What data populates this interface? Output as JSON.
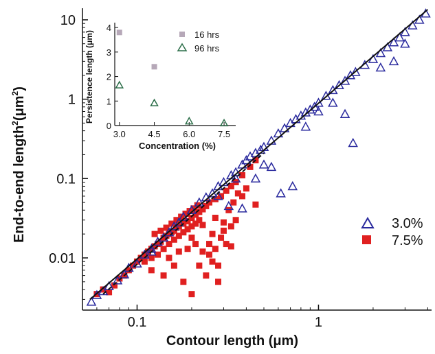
{
  "chart_data": [
    {
      "type": "scatter",
      "xlabel": "Contour length (μm)",
      "ylabel_main": "End-to-end length",
      "ylabel_sup": "2",
      "ylabel_unit": "(μm",
      "ylabel_unit_sup": "2",
      "ylabel_close": ")",
      "xscale": "log",
      "yscale": "log",
      "xlim": [
        0.05,
        4.2
      ],
      "ylim": [
        0.0022,
        14
      ],
      "xticks": [
        {
          "v": 0.1,
          "label": "0.1"
        },
        {
          "v": 1,
          "label": "1"
        }
      ],
      "yticks": [
        {
          "v": 0.01,
          "label": "0.01"
        },
        {
          "v": 0.1,
          "label": "0.1"
        },
        {
          "v": 1,
          "label": "1"
        },
        {
          "v": 10,
          "label": "10"
        }
      ],
      "legend_position": "right",
      "reference_lines": [
        {
          "style": "solid",
          "x": [
            0.055,
            4.0
          ],
          "y": [
            0.003,
            13.5
          ]
        },
        {
          "style": "dashed",
          "x": [
            0.065,
            0.5
          ],
          "y": [
            0.0035,
            0.21
          ]
        }
      ],
      "series": [
        {
          "name": "3.0%",
          "marker": "triangle-open",
          "color": "#2a2a9e",
          "points": [
            [
              0.056,
              0.0028
            ],
            [
              0.06,
              0.0034
            ],
            [
              0.065,
              0.0038
            ],
            [
              0.07,
              0.0044
            ],
            [
              0.078,
              0.0052
            ],
            [
              0.085,
              0.0062
            ],
            [
              0.09,
              0.0075
            ],
            [
              0.1,
              0.0085
            ],
            [
              0.11,
              0.011
            ],
            [
              0.12,
              0.013
            ],
            [
              0.13,
              0.016
            ],
            [
              0.14,
              0.018
            ],
            [
              0.15,
              0.021
            ],
            [
              0.16,
              0.025
            ],
            [
              0.17,
              0.028
            ],
            [
              0.18,
              0.033
            ],
            [
              0.2,
              0.04
            ],
            [
              0.22,
              0.05
            ],
            [
              0.24,
              0.058
            ],
            [
              0.26,
              0.065
            ],
            [
              0.28,
              0.08
            ],
            [
              0.3,
              0.09
            ],
            [
              0.33,
              0.11
            ],
            [
              0.35,
              0.12
            ],
            [
              0.38,
              0.15
            ],
            [
              0.4,
              0.17
            ],
            [
              0.42,
              0.19
            ],
            [
              0.45,
              0.21
            ],
            [
              0.48,
              0.23
            ],
            [
              0.5,
              0.25
            ],
            [
              0.55,
              0.3
            ],
            [
              0.6,
              0.37
            ],
            [
              0.65,
              0.43
            ],
            [
              0.7,
              0.5
            ],
            [
              0.75,
              0.56
            ],
            [
              0.8,
              0.62
            ],
            [
              0.85,
              0.68
            ],
            [
              0.9,
              0.74
            ],
            [
              0.95,
              0.8
            ],
            [
              1.0,
              0.9
            ],
            [
              1.1,
              1.1
            ],
            [
              1.2,
              1.3
            ],
            [
              1.3,
              1.5
            ],
            [
              1.4,
              1.7
            ],
            [
              1.5,
              2.0
            ],
            [
              1.6,
              2.2
            ],
            [
              1.8,
              2.7
            ],
            [
              2.0,
              3.2
            ],
            [
              2.2,
              3.8
            ],
            [
              2.4,
              4.5
            ],
            [
              2.6,
              5.2
            ],
            [
              2.8,
              6.0
            ],
            [
              3.0,
              7.0
            ],
            [
              3.3,
              8.5
            ],
            [
              3.6,
              10.0
            ],
            [
              3.9,
              12.0
            ],
            [
              0.55,
              0.14
            ],
            [
              0.62,
              0.065
            ],
            [
              0.72,
              0.08
            ],
            [
              0.5,
              0.15
            ],
            [
              0.32,
              0.045
            ],
            [
              0.38,
              0.042
            ],
            [
              0.45,
              0.1
            ],
            [
              1.4,
              0.65
            ],
            [
              1.55,
              0.28
            ],
            [
              1.2,
              0.9
            ],
            [
              1.0,
              0.7
            ],
            [
              0.85,
              0.45
            ],
            [
              2.6,
              3.0
            ],
            [
              3.0,
              5.0
            ],
            [
              2.2,
              2.5
            ],
            [
              0.28,
              0.06
            ],
            [
              0.35,
              0.1
            ],
            [
              0.12,
              0.012
            ]
          ]
        },
        {
          "name": "7.5%",
          "marker": "square-filled",
          "color": "#e02020",
          "points": [
            [
              0.06,
              0.0035
            ],
            [
              0.065,
              0.004
            ],
            [
              0.07,
              0.0037
            ],
            [
              0.075,
              0.0045
            ],
            [
              0.08,
              0.0055
            ],
            [
              0.085,
              0.006
            ],
            [
              0.09,
              0.007
            ],
            [
              0.095,
              0.008
            ],
            [
              0.1,
              0.009
            ],
            [
              0.105,
              0.01
            ],
            [
              0.11,
              0.011
            ],
            [
              0.115,
              0.012
            ],
            [
              0.12,
              0.013
            ],
            [
              0.125,
              0.014
            ],
            [
              0.13,
              0.015
            ],
            [
              0.135,
              0.016
            ],
            [
              0.14,
              0.018
            ],
            [
              0.145,
              0.019
            ],
            [
              0.15,
              0.02
            ],
            [
              0.155,
              0.021
            ],
            [
              0.16,
              0.022
            ],
            [
              0.165,
              0.024
            ],
            [
              0.17,
              0.025
            ],
            [
              0.18,
              0.027
            ],
            [
              0.19,
              0.029
            ],
            [
              0.2,
              0.032
            ],
            [
              0.21,
              0.035
            ],
            [
              0.22,
              0.038
            ],
            [
              0.23,
              0.041
            ],
            [
              0.24,
              0.045
            ],
            [
              0.25,
              0.05
            ],
            [
              0.27,
              0.055
            ],
            [
              0.29,
              0.06
            ],
            [
              0.31,
              0.07
            ],
            [
              0.33,
              0.08
            ],
            [
              0.35,
              0.09
            ],
            [
              0.38,
              0.11
            ],
            [
              0.42,
              0.14
            ],
            [
              0.45,
              0.17
            ],
            [
              0.11,
              0.009
            ],
            [
              0.12,
              0.01
            ],
            [
              0.13,
              0.011
            ],
            [
              0.14,
              0.013
            ],
            [
              0.15,
              0.015
            ],
            [
              0.16,
              0.017
            ],
            [
              0.17,
              0.019
            ],
            [
              0.18,
              0.021
            ],
            [
              0.19,
              0.023
            ],
            [
              0.2,
              0.025
            ],
            [
              0.21,
              0.027
            ],
            [
              0.22,
              0.03
            ],
            [
              0.125,
              0.02
            ],
            [
              0.135,
              0.022
            ],
            [
              0.145,
              0.024
            ],
            [
              0.155,
              0.027
            ],
            [
              0.165,
              0.03
            ],
            [
              0.175,
              0.033
            ],
            [
              0.185,
              0.036
            ],
            [
              0.195,
              0.039
            ],
            [
              0.205,
              0.042
            ],
            [
              0.215,
              0.046
            ],
            [
              0.12,
              0.007
            ],
            [
              0.14,
              0.006
            ],
            [
              0.15,
              0.01
            ],
            [
              0.17,
              0.012
            ],
            [
              0.19,
              0.013
            ],
            [
              0.21,
              0.015
            ],
            [
              0.23,
              0.012
            ],
            [
              0.25,
              0.011
            ],
            [
              0.27,
              0.013
            ],
            [
              0.29,
              0.018
            ],
            [
              0.22,
              0.008
            ],
            [
              0.24,
              0.006
            ],
            [
              0.26,
              0.009
            ],
            [
              0.28,
              0.008
            ],
            [
              0.31,
              0.015
            ],
            [
              0.33,
              0.025
            ],
            [
              0.35,
              0.03
            ],
            [
              0.3,
              0.022
            ],
            [
              0.32,
              0.04
            ],
            [
              0.38,
              0.06
            ],
            [
              0.4,
              0.075
            ],
            [
              0.27,
              0.032
            ],
            [
              0.3,
              0.028
            ],
            [
              0.2,
              0.018
            ],
            [
              0.18,
              0.005
            ],
            [
              0.2,
              0.0035
            ],
            [
              0.28,
              0.005
            ],
            [
              0.45,
              0.047
            ],
            [
              0.33,
              0.014
            ],
            [
              0.26,
              0.02
            ],
            [
              0.23,
              0.026
            ],
            [
              0.34,
              0.05
            ],
            [
              0.36,
              0.065
            ],
            [
              0.25,
              0.015
            ],
            [
              0.16,
              0.008
            ]
          ]
        }
      ]
    },
    {
      "type": "scatter",
      "xlabel": "Concentration (%)",
      "ylabel": "Persistence length (μm)",
      "xlim": [
        2.8,
        8.0
      ],
      "ylim": [
        0,
        4.2
      ],
      "xticks": [
        {
          "v": 3.0,
          "label": "3.0"
        },
        {
          "v": 4.5,
          "label": "4.5"
        },
        {
          "v": 6.0,
          "label": "6.0"
        },
        {
          "v": 7.5,
          "label": "7.5"
        }
      ],
      "yticks": [
        {
          "v": 0,
          "label": "0"
        },
        {
          "v": 1,
          "label": "1"
        },
        {
          "v": 2,
          "label": "2"
        },
        {
          "v": 3,
          "label": "3"
        },
        {
          "v": 4,
          "label": "4"
        }
      ],
      "legend_position": "top-right",
      "series": [
        {
          "name": "16 hrs",
          "marker": "square-filled",
          "color": "#b6a8b8",
          "x": [
            3.0,
            4.5
          ],
          "y": [
            3.8,
            2.4
          ]
        },
        {
          "name": "96 hrs",
          "marker": "triangle-open",
          "color": "#2c6e49",
          "x": [
            3.0,
            4.5,
            6.0,
            7.5
          ],
          "y": [
            1.65,
            0.92,
            0.18,
            0.1
          ]
        }
      ]
    }
  ]
}
